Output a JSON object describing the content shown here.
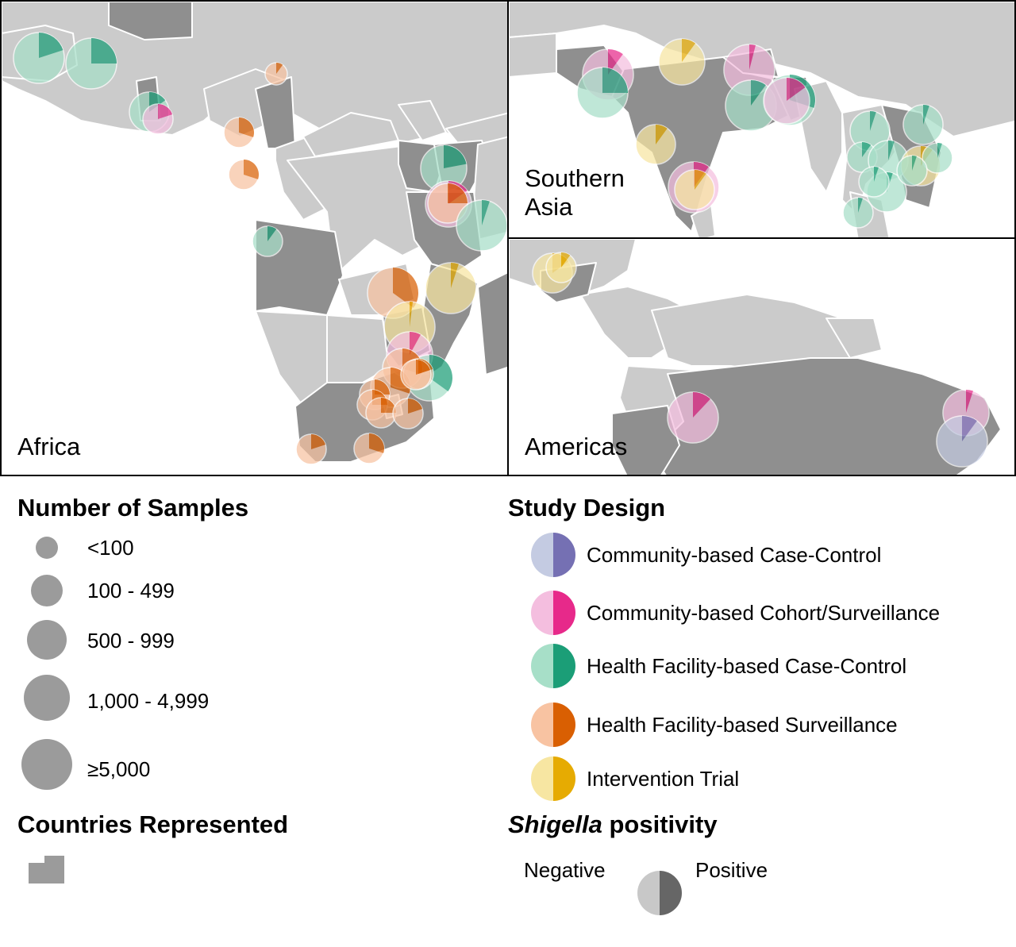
{
  "panels": {
    "africa": {
      "label": "Africa"
    },
    "asia": {
      "label_line1": "Southern",
      "label_line2": "Asia"
    },
    "americas": {
      "label": "Americas"
    }
  },
  "colors": {
    "sea": "#ffffff",
    "land_other": "#cbcbcb",
    "land_represented": "#8f8f8f",
    "border": "#ffffff",
    "community_case_control": {
      "negative": "#c4cbe2",
      "positive": "#7570b3"
    },
    "community_cohort": {
      "negative": "#f4bedf",
      "positive": "#e7298a"
    },
    "facility_case_control": {
      "negative": "#a7dfc8",
      "positive": "#1b9e77"
    },
    "facility_surveillance": {
      "negative": "#f8c3a2",
      "positive": "#d95f02"
    },
    "intervention_trial": {
      "negative": "#f7e6a2",
      "positive": "#e6ab02"
    }
  },
  "legend": {
    "samples": {
      "title": "Number of Samples",
      "items": [
        {
          "label": "<100"
        },
        {
          "label": "100 - 499"
        },
        {
          "label": "500 - 999"
        },
        {
          "label": "1,000 - 4,999"
        },
        {
          "label": "≥5,000"
        }
      ]
    },
    "countries": {
      "title": "Countries Represented"
    },
    "study_design": {
      "title": "Study Design",
      "items": [
        {
          "key": "community_case_control",
          "label": "Community-based Case-Control"
        },
        {
          "key": "community_cohort",
          "label": "Community-based Cohort/Surveillance"
        },
        {
          "key": "facility_case_control",
          "label": "Health Facility-based Case-Control"
        },
        {
          "key": "facility_surveillance",
          "label": "Health Facility-based Surveillance"
        },
        {
          "key": "intervention_trial",
          "label": "Intervention Trial"
        }
      ]
    },
    "positivity": {
      "title_italic": "Shigella",
      "title_rest": " positivity",
      "negative_label": "Negative",
      "positive_label": "Positive"
    }
  },
  "study_sites": {
    "africa": [
      {
        "design": "facility_case_control",
        "size_class": "≥5,000",
        "positive_fraction": 0.2
      },
      {
        "design": "facility_case_control",
        "size_class": "≥5,000",
        "positive_fraction": 0.25
      },
      {
        "design": "facility_case_control",
        "size_class": "500 - 999",
        "positive_fraction": 0.15
      },
      {
        "design": "community_cohort",
        "size_class": "100 - 499",
        "positive_fraction": 0.2
      },
      {
        "design": "facility_surveillance",
        "size_class": "<100",
        "positive_fraction": 0.1
      },
      {
        "design": "facility_surveillance",
        "size_class": "100 - 499",
        "positive_fraction": 0.3
      },
      {
        "design": "facility_surveillance",
        "size_class": "100 - 499",
        "positive_fraction": 0.3
      },
      {
        "design": "facility_case_control",
        "size_class": "1,000 - 4,999",
        "positive_fraction": 0.22
      },
      {
        "design": "community_cohort",
        "size_class": "1,000 - 4,999",
        "positive_fraction": 0.15
      },
      {
        "design": "facility_surveillance",
        "size_class": "500 - 999",
        "positive_fraction": 0.25
      },
      {
        "design": "facility_case_control",
        "size_class": "≥5,000",
        "positive_fraction": 0.05
      },
      {
        "design": "facility_case_control",
        "size_class": "100 - 499",
        "positive_fraction": 0.1
      },
      {
        "design": "facility_surveillance",
        "size_class": "≥5,000",
        "positive_fraction": 0.35
      },
      {
        "design": "intervention_trial",
        "size_class": "≥5,000",
        "positive_fraction": 0.05
      },
      {
        "design": "intervention_trial",
        "size_class": "≥5,000",
        "positive_fraction": 0.02
      },
      {
        "design": "community_cohort",
        "size_class": "1,000 - 4,999",
        "positive_fraction": 0.08
      },
      {
        "design": "facility_case_control",
        "size_class": "1,000 - 4,999",
        "positive_fraction": 0.35
      },
      {
        "design": "facility_surveillance",
        "size_class": "500 - 999",
        "positive_fraction": 0.3
      },
      {
        "design": "facility_surveillance",
        "size_class": "500 - 999",
        "positive_fraction": 0.3
      },
      {
        "design": "facility_surveillance",
        "size_class": "100 - 499",
        "positive_fraction": 0.25
      },
      {
        "design": "facility_surveillance",
        "size_class": "100 - 499",
        "positive_fraction": 0.25
      },
      {
        "design": "facility_surveillance",
        "size_class": "100 - 499",
        "positive_fraction": 0.25
      },
      {
        "design": "facility_surveillance",
        "size_class": "100 - 499",
        "positive_fraction": 0.2
      },
      {
        "design": "facility_surveillance",
        "size_class": "100 - 499",
        "positive_fraction": 0.2
      },
      {
        "design": "facility_surveillance",
        "size_class": "100 - 499",
        "positive_fraction": 0.2
      },
      {
        "design": "facility_surveillance",
        "size_class": "100 - 499",
        "positive_fraction": 0.3
      },
      {
        "design": "facility_surveillance",
        "size_class": "100 - 499",
        "positive_fraction": 0.2
      }
    ],
    "asia": [
      {
        "design": "community_cohort",
        "size_class": "≥5,000",
        "positive_fraction": 0.1
      },
      {
        "design": "facility_case_control",
        "size_class": "≥5,000",
        "positive_fraction": 0.25
      },
      {
        "design": "intervention_trial",
        "size_class": "1,000 - 4,999",
        "positive_fraction": 0.1
      },
      {
        "design": "community_cohort",
        "size_class": "≥5,000",
        "positive_fraction": 0.04
      },
      {
        "design": "facility_case_control",
        "size_class": "≥5,000",
        "positive_fraction": 0.1
      },
      {
        "design": "facility_case_control",
        "size_class": "≥5,000",
        "positive_fraction": 0.3
      },
      {
        "design": "community_cohort",
        "size_class": "1,000 - 4,999",
        "positive_fraction": 0.15
      },
      {
        "design": "intervention_trial",
        "size_class": "500 - 999",
        "positive_fraction": 0.1
      },
      {
        "design": "community_cohort",
        "size_class": "≥5,000",
        "positive_fraction": 0.1
      },
      {
        "design": "intervention_trial",
        "size_class": "500 - 999",
        "positive_fraction": 0.1
      },
      {
        "design": "facility_case_control",
        "size_class": "500 - 999",
        "positive_fraction": 0.05
      },
      {
        "design": "facility_case_control",
        "size_class": "500 - 999",
        "positive_fraction": 0.05
      },
      {
        "design": "facility_case_control",
        "size_class": "100 - 499",
        "positive_fraction": 0.1
      },
      {
        "design": "facility_case_control",
        "size_class": "500 - 999",
        "positive_fraction": 0.05
      },
      {
        "design": "facility_case_control",
        "size_class": "500 - 999",
        "positive_fraction": 0.05
      },
      {
        "design": "intervention_trial",
        "size_class": "500 - 999",
        "positive_fraction": 0.1
      },
      {
        "design": "facility_case_control",
        "size_class": "100 - 499",
        "positive_fraction": 0.05
      },
      {
        "design": "facility_case_control",
        "size_class": "100 - 499",
        "positive_fraction": 0.05
      },
      {
        "design": "facility_case_control",
        "size_class": "100 - 499",
        "positive_fraction": 0.05
      },
      {
        "design": "facility_case_control",
        "size_class": "100 - 499",
        "positive_fraction": 0.05
      }
    ],
    "americas": [
      {
        "design": "intervention_trial",
        "size_class": "500 - 999",
        "positive_fraction": 0.15
      },
      {
        "design": "intervention_trial",
        "size_class": "100 - 499",
        "positive_fraction": 0.1
      },
      {
        "design": "community_cohort",
        "size_class": "≥5,000",
        "positive_fraction": 0.12
      },
      {
        "design": "community_cohort",
        "size_class": "1,000 - 4,999",
        "positive_fraction": 0.05
      },
      {
        "design": "community_case_control",
        "size_class": "≥5,000",
        "positive_fraction": 0.1
      }
    ]
  }
}
